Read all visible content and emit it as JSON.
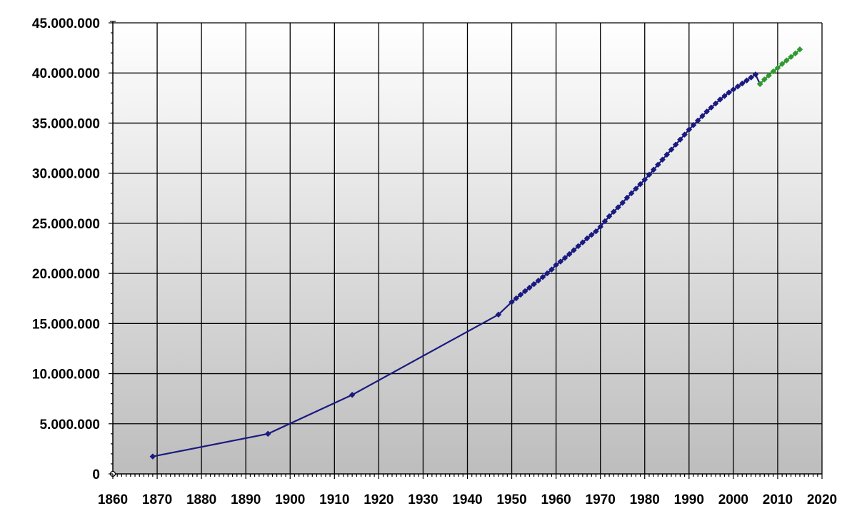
{
  "chart_data": {
    "type": "line",
    "title": "",
    "xlabel": "",
    "ylabel": "",
    "xlim": [
      1860,
      2020
    ],
    "ylim": [
      0,
      45000000
    ],
    "grid": true,
    "x_ticks": [
      "1860",
      "1870",
      "1880",
      "1890",
      "1900",
      "1910",
      "1920",
      "1930",
      "1940",
      "1950",
      "1960",
      "1970",
      "1980",
      "1990",
      "2000",
      "2010",
      "2020"
    ],
    "y_ticks": [
      "0",
      "5.000.000",
      "10.000.000",
      "15.000.000",
      "20.000.000",
      "25.000.000",
      "30.000.000",
      "35.000.000",
      "40.000.000",
      "45.000.000"
    ],
    "series": [
      {
        "color": "#1a1a80",
        "marker": "diamond",
        "points": [
          [
            1869,
            1737000
          ],
          [
            1895,
            4000000
          ],
          [
            1914,
            7885000
          ],
          [
            1947,
            15894000
          ],
          [
            1950,
            17150000
          ],
          [
            1951,
            17517000
          ],
          [
            1952,
            17877000
          ],
          [
            1953,
            18231000
          ],
          [
            1954,
            18580000
          ],
          [
            1955,
            18928000
          ],
          [
            1956,
            19280000
          ],
          [
            1957,
            19640000
          ],
          [
            1958,
            20010000
          ],
          [
            1959,
            20390000
          ],
          [
            1960,
            20850000
          ],
          [
            1961,
            21180000
          ],
          [
            1962,
            21550000
          ],
          [
            1963,
            21930000
          ],
          [
            1964,
            22320000
          ],
          [
            1965,
            22720000
          ],
          [
            1966,
            23100000
          ],
          [
            1967,
            23500000
          ],
          [
            1968,
            23850000
          ],
          [
            1969,
            24200000
          ],
          [
            1970,
            24650000
          ],
          [
            1971,
            25200000
          ],
          [
            1972,
            25700000
          ],
          [
            1973,
            26150000
          ],
          [
            1974,
            26600000
          ],
          [
            1975,
            27050000
          ],
          [
            1976,
            27550000
          ],
          [
            1977,
            28000000
          ],
          [
            1978,
            28450000
          ],
          [
            1979,
            28900000
          ],
          [
            1980,
            29350000
          ],
          [
            1981,
            29850000
          ],
          [
            1982,
            30350000
          ],
          [
            1983,
            30850000
          ],
          [
            1984,
            31350000
          ],
          [
            1985,
            31850000
          ],
          [
            1986,
            32350000
          ],
          [
            1987,
            32850000
          ],
          [
            1988,
            33350000
          ],
          [
            1989,
            33850000
          ],
          [
            1990,
            34350000
          ],
          [
            1991,
            34800000
          ],
          [
            1992,
            35250000
          ],
          [
            1993,
            35700000
          ],
          [
            1994,
            36150000
          ],
          [
            1995,
            36550000
          ],
          [
            1996,
            36950000
          ],
          [
            1997,
            37350000
          ],
          [
            1998,
            37700000
          ],
          [
            1999,
            38050000
          ],
          [
            2000,
            38350000
          ],
          [
            2001,
            38650000
          ],
          [
            2002,
            38950000
          ],
          [
            2003,
            39250000
          ],
          [
            2004,
            39550000
          ],
          [
            2005,
            39850000
          ],
          [
            2006,
            38900000
          ]
        ]
      },
      {
        "color": "#2e9a2e",
        "marker": "diamond",
        "points": [
          [
            2006,
            38900000
          ],
          [
            2007,
            39350000
          ],
          [
            2008,
            39750000
          ],
          [
            2009,
            40150000
          ],
          [
            2010,
            40500000
          ],
          [
            2011,
            40900000
          ],
          [
            2012,
            41250000
          ],
          [
            2013,
            41600000
          ],
          [
            2014,
            41950000
          ],
          [
            2015,
            42350000
          ]
        ]
      }
    ]
  },
  "colors": {
    "background_top": "#ffffff",
    "background_bottom": "#bdbdbd",
    "grid": "#000000"
  }
}
